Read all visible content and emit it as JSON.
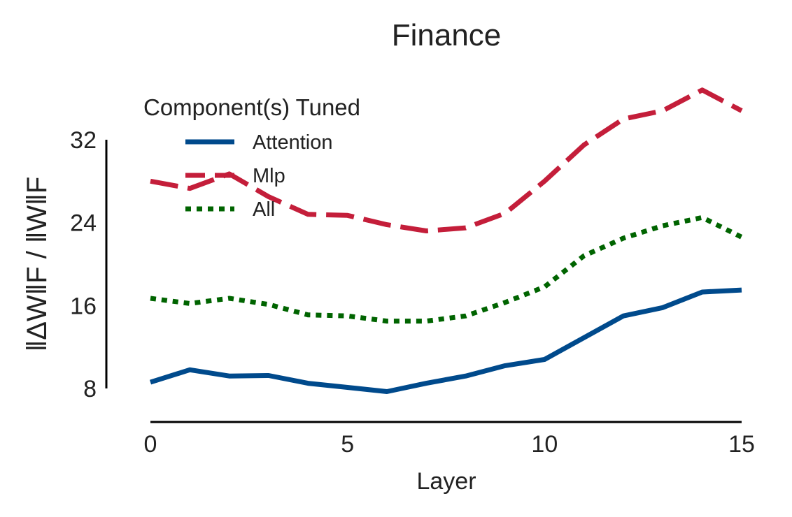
{
  "chart_data": {
    "type": "line",
    "title": "Finance",
    "xlabel": "Layer",
    "ylabel": "‖ΔW‖F / ‖W‖F",
    "x": [
      0,
      1,
      2,
      3,
      4,
      5,
      6,
      7,
      8,
      9,
      10,
      11,
      12,
      13,
      14,
      15
    ],
    "xticks": [
      0,
      5,
      10,
      15
    ],
    "yticks": [
      8,
      16,
      24,
      32
    ],
    "xlim": [
      0,
      15
    ],
    "ylim": [
      5,
      36
    ],
    "grid": false,
    "legend": {
      "title": "Component(s) Tuned",
      "placement": "top-left"
    },
    "series": [
      {
        "name": "Attention",
        "color": "#004a8c",
        "style": "solid",
        "values": [
          8.6,
          9.8,
          9.2,
          9.25,
          8.5,
          8.1,
          7.7,
          8.5,
          9.2,
          10.2,
          10.8,
          12.9,
          15.0,
          15.8,
          17.3,
          17.5
        ]
      },
      {
        "name": "Mlp",
        "color": "#c41e3a",
        "style": "dashed",
        "values": [
          28.0,
          27.3,
          28.7,
          26.5,
          24.8,
          24.7,
          23.8,
          23.2,
          23.5,
          24.9,
          28.0,
          31.5,
          34.0,
          34.8,
          36.8,
          34.8
        ]
      },
      {
        "name": "All",
        "color": "#006400",
        "style": "dotted",
        "values": [
          16.7,
          16.2,
          16.7,
          16.1,
          15.1,
          15.0,
          14.5,
          14.5,
          15.0,
          16.3,
          17.8,
          20.8,
          22.5,
          23.7,
          24.5,
          22.6
        ]
      }
    ]
  }
}
